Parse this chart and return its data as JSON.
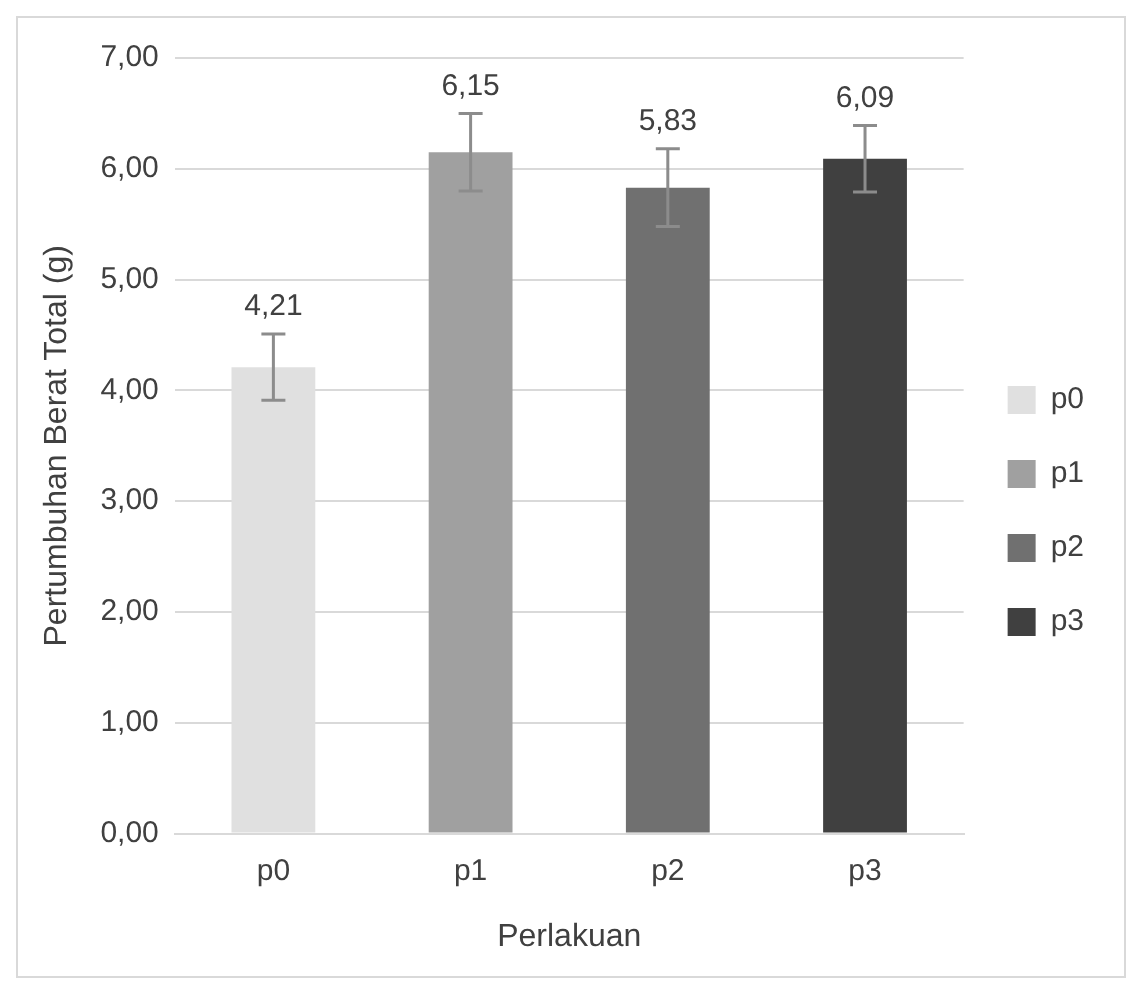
{
  "chart_data": {
    "type": "bar",
    "ylabel": "Pertumbuhan Berat Total (g)",
    "xlabel": "Perlakuan",
    "categories": [
      "p0",
      "p1",
      "p2",
      "p3"
    ],
    "series": [
      {
        "name": "p0",
        "color": "#e0e0e0",
        "values": [
          4.21,
          null,
          null,
          null
        ],
        "errors": [
          0.3,
          null,
          null,
          null
        ],
        "value_labels": [
          "4,21",
          null,
          null,
          null
        ]
      },
      {
        "name": "p1",
        "color": "#a0a0a0",
        "values": [
          null,
          6.15,
          null,
          null
        ],
        "errors": [
          null,
          0.35,
          null,
          null
        ],
        "value_labels": [
          null,
          "6,15",
          null,
          null
        ]
      },
      {
        "name": "p2",
        "color": "#707070",
        "values": [
          null,
          null,
          5.83,
          null
        ],
        "errors": [
          null,
          null,
          0.35,
          null
        ],
        "value_labels": [
          null,
          null,
          "5,83",
          null
        ]
      },
      {
        "name": "p3",
        "color": "#404040",
        "values": [
          null,
          null,
          null,
          6.09
        ],
        "errors": [
          null,
          null,
          null,
          0.3
        ],
        "value_labels": [
          null,
          null,
          null,
          "6,09"
        ]
      }
    ],
    "ylim": [
      0,
      7
    ],
    "yticks": [
      {
        "value": 0,
        "label": "0,00"
      },
      {
        "value": 1,
        "label": "1,00"
      },
      {
        "value": 2,
        "label": "2,00"
      },
      {
        "value": 3,
        "label": "3,00"
      },
      {
        "value": 4,
        "label": "4,00"
      },
      {
        "value": 5,
        "label": "5,00"
      },
      {
        "value": 6,
        "label": "6,00"
      },
      {
        "value": 7,
        "label": "7,00"
      }
    ],
    "grid": "y",
    "legend": "right"
  }
}
